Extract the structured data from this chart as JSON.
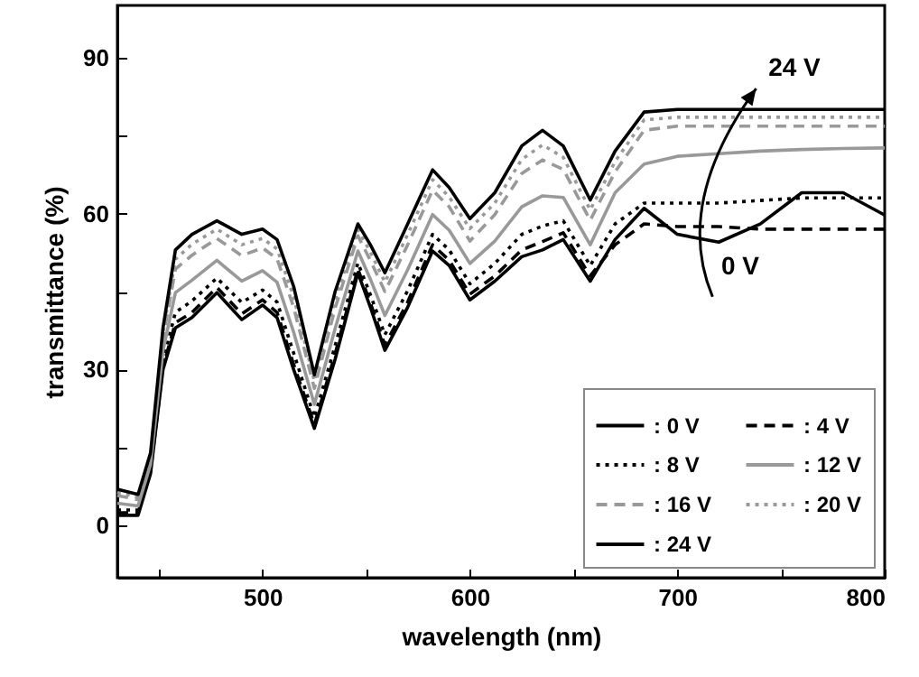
{
  "chart_data": {
    "type": "line",
    "xlabel": "wavelength (nm)",
    "ylabel": "transmittance (%)",
    "x": [
      430,
      440,
      446,
      452,
      458,
      466,
      478,
      490,
      500,
      507,
      515,
      525,
      535,
      546,
      552,
      559,
      570,
      582,
      590,
      600,
      612,
      625,
      635,
      645,
      658,
      670,
      684,
      700,
      720,
      740,
      760,
      780,
      800
    ],
    "xlim": [
      430,
      800
    ],
    "xticks": [
      {
        "value": 450,
        "label": null
      },
      500,
      {
        "value": 550,
        "label": null
      },
      600,
      {
        "value": 650,
        "label": null
      },
      700,
      {
        "value": 750,
        "label": null
      },
      800
    ],
    "ylim": [
      -10,
      100
    ],
    "yticks": [
      0,
      {
        "value": 15,
        "label": null
      },
      30,
      {
        "value": 45,
        "label": null
      },
      60,
      {
        "value": 75,
        "label": null
      },
      90
    ],
    "legend": "bottom right",
    "series": [
      {
        "name": ": 0 V",
        "color": "#000000",
        "line_style": "solid",
        "values": [
          2,
          2,
          10,
          30,
          38,
          40,
          44.8,
          39.6,
          42.4,
          40,
          30,
          18.7,
          32,
          48.6,
          42,
          33.7,
          42,
          52.8,
          50,
          43.4,
          47,
          51.7,
          53,
          55,
          47,
          55,
          61,
          56,
          54.5,
          58,
          64,
          64,
          59.7
        ]
      },
      {
        "name": ": 4 V",
        "color": "#000000",
        "line_style": "dashed",
        "values": [
          2.5,
          2.5,
          10.5,
          30.5,
          39,
          41,
          45.8,
          40.7,
          43.4,
          41,
          31,
          19.4,
          33,
          49.3,
          42.8,
          34.7,
          43,
          54,
          51,
          44.5,
          48,
          53,
          54.6,
          56.3,
          48,
          54,
          58,
          57.5,
          57.5,
          57,
          57,
          57,
          57
        ]
      },
      {
        "name": ": 8 V",
        "color": "#000000",
        "line_style": "dotted",
        "values": [
          3,
          3,
          11,
          31.6,
          41,
          43.2,
          47.6,
          42.9,
          45.3,
          43,
          33.2,
          20.8,
          34.6,
          50.5,
          44.4,
          36.7,
          45.2,
          56,
          53,
          46.5,
          50.4,
          56,
          57.6,
          58.6,
          50,
          58,
          62,
          62,
          62,
          62.5,
          63,
          63,
          63
        ]
      },
      {
        "name": ": 12 V",
        "color": "#999999",
        "line_style": "solid",
        "values": [
          4.3,
          3.8,
          11.8,
          33.6,
          44.8,
          47.2,
          51,
          47,
          49,
          46.8,
          37.2,
          23.3,
          37.9,
          52.8,
          47.4,
          40.4,
          49.2,
          59.8,
          56.8,
          50.4,
          54.7,
          61.3,
          63.4,
          63.1,
          54,
          64,
          69.5,
          71,
          71.5,
          72,
          72.3,
          72.5,
          72.6
        ]
      },
      {
        "name": ": 16 V",
        "color": "#999999",
        "line_style": "dashed",
        "values": [
          5.8,
          5,
          13,
          36,
          49.3,
          52,
          55.2,
          51.9,
          53.4,
          51.3,
          42,
          26.4,
          41.8,
          55.7,
          51,
          45,
          54,
          64.5,
          61.3,
          54.7,
          59.8,
          67.7,
          70.3,
          68.5,
          58.7,
          68,
          76,
          76.8,
          76.8,
          76.8,
          76.8,
          76.8,
          76.8
        ]
      },
      {
        "name": ": 20 V",
        "color": "#999999",
        "line_style": "dotted",
        "values": [
          6.4,
          5.5,
          13.5,
          37,
          51.2,
          54.1,
          57,
          54,
          55.2,
          53.2,
          44,
          27.8,
          43.4,
          56.9,
          52.6,
          46.8,
          56,
          66.5,
          63.2,
          57.1,
          62,
          70.4,
          73.2,
          70.8,
          60.7,
          70,
          78,
          78.5,
          78.5,
          78.5,
          78.5,
          78.5,
          78.5
        ]
      },
      {
        "name": ": 24 V",
        "color": "#000000",
        "line_style": "solid",
        "values": [
          7,
          6,
          14,
          38,
          53,
          56,
          58.6,
          56,
          57,
          55,
          46,
          29,
          45,
          58,
          54,
          48.6,
          58,
          68.4,
          65,
          59,
          64,
          73,
          76,
          73,
          62.6,
          72,
          79.5,
          80,
          80,
          80,
          80,
          80,
          80
        ]
      }
    ],
    "annotations": [
      "24 V",
      "0 V"
    ]
  }
}
